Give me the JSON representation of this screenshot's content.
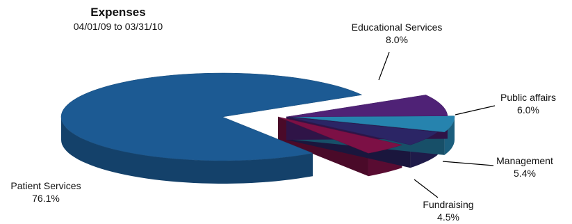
{
  "chart_data": {
    "type": "pie",
    "title": "Expenses",
    "subtitle": "04/01/09 to 03/31/10",
    "slices": [
      {
        "label": "Patient Services",
        "value": 76.1,
        "value_label": "76.1%",
        "color": "#1c5a93"
      },
      {
        "label": "Educational Services",
        "value": 8.0,
        "value_label": "8.0%",
        "color": "#4f2276"
      },
      {
        "label": "Public affairs",
        "value": 6.0,
        "value_label": "6.0%",
        "color": "#2683ae"
      },
      {
        "label": "Management",
        "value": 5.4,
        "value_label": "5.4%",
        "color": "#2b2565"
      },
      {
        "label": "Fundraising",
        "value": 4.5,
        "value_label": "4.5%",
        "color": "#7c1045"
      }
    ]
  }
}
